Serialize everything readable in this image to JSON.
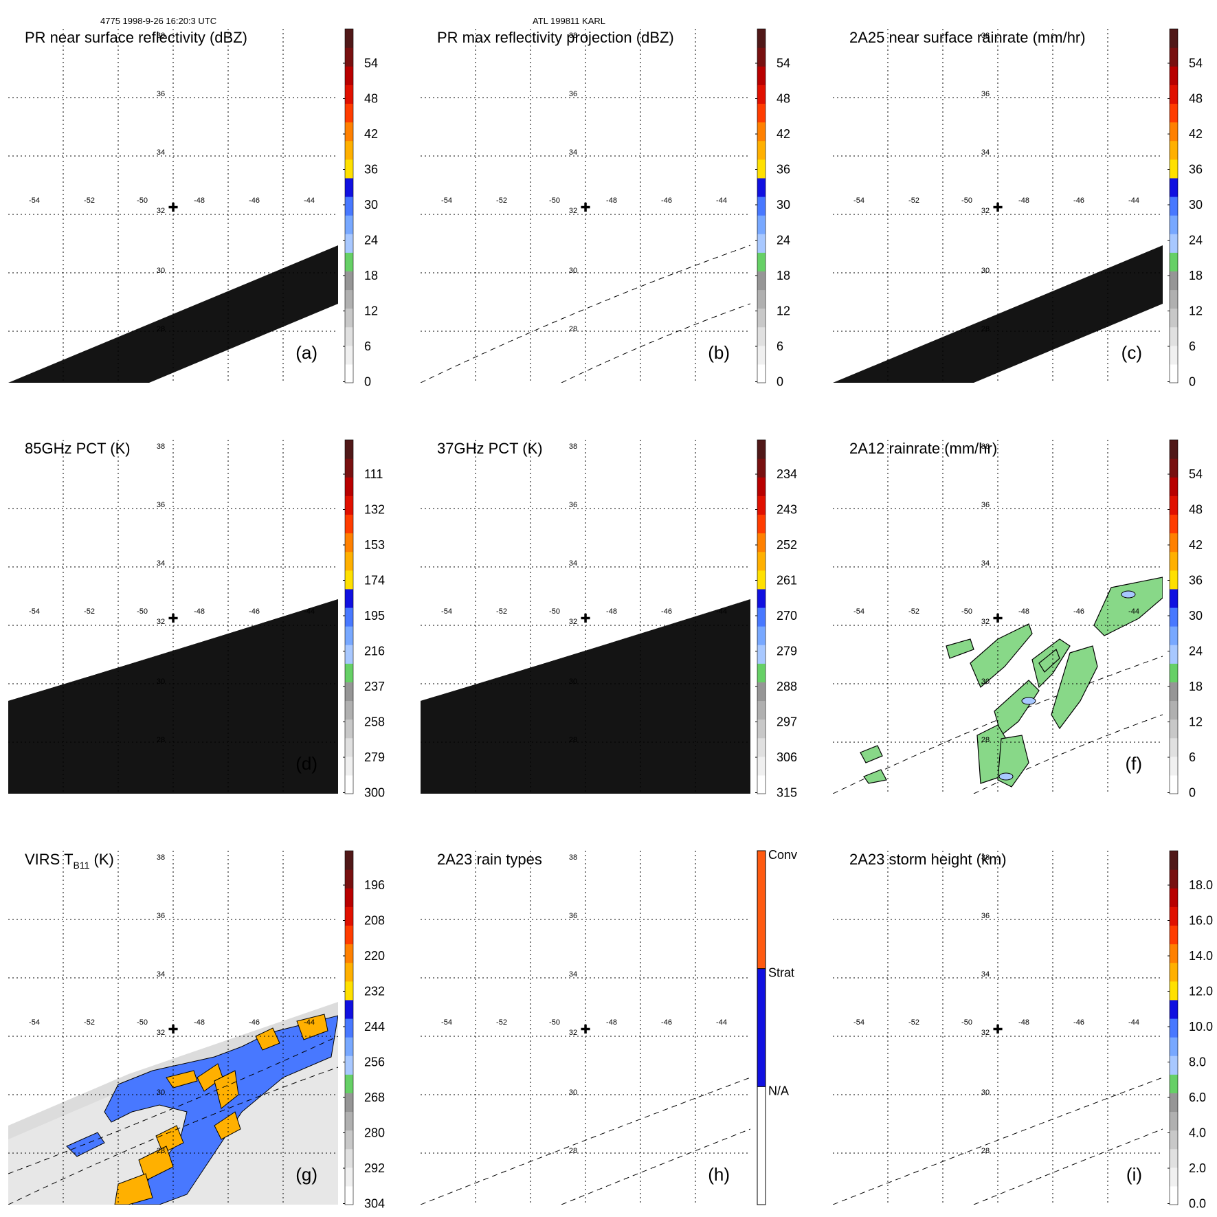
{
  "header": {
    "left": "4775 1998-9-26 16:20:3 UTC",
    "center": "ATL 199811 KARL"
  },
  "map": {
    "lon_labels": [
      "-54",
      "-52",
      "-50",
      "-48",
      "-46",
      "-44"
    ],
    "lat_labels": [
      "38",
      "36",
      "34",
      "32",
      "30",
      "28"
    ],
    "storm_center_symbol": "✚"
  },
  "panels": [
    {
      "id": "a",
      "title": "PR near surface reflectivity (dBZ)",
      "letter": "(a)",
      "colorbar": {
        "ticks": [
          "54",
          "48",
          "42",
          "36",
          "30",
          "24",
          "18",
          "12",
          "6",
          "0"
        ]
      },
      "content": "swath"
    },
    {
      "id": "b",
      "title": "PR max reflectivity projection (dBZ)",
      "letter": "(b)",
      "colorbar": {
        "ticks": [
          "54",
          "48",
          "42",
          "36",
          "30",
          "24",
          "18",
          "12",
          "6",
          "0"
        ]
      },
      "content": "dashed"
    },
    {
      "id": "c",
      "title": "2A25 near surface rainrate (mm/hr)",
      "letter": "(c)",
      "colorbar": {
        "ticks": [
          "54",
          "48",
          "42",
          "36",
          "30",
          "24",
          "18",
          "12",
          "6",
          "0"
        ]
      },
      "content": "swath"
    },
    {
      "id": "d",
      "title": "85GHz PCT (K)",
      "letter": "(d)",
      "colorbar": {
        "ticks": [
          "111",
          "132",
          "153",
          "174",
          "195",
          "216",
          "237",
          "258",
          "279",
          "300"
        ]
      },
      "content": "swath-wide"
    },
    {
      "id": "e",
      "title": "37GHz PCT (K)",
      "letter": "",
      "colorbar": {
        "ticks": [
          "234",
          "243",
          "252",
          "261",
          "270",
          "279",
          "288",
          "297",
          "306",
          "315"
        ]
      },
      "content": "swath-wide"
    },
    {
      "id": "f",
      "title": "2A12 rainrate (mm/hr)",
      "letter": "(f)",
      "colorbar": {
        "ticks": [
          "54",
          "48",
          "42",
          "36",
          "30",
          "24",
          "18",
          "12",
          "6",
          "0"
        ]
      },
      "content": "rain"
    },
    {
      "id": "g",
      "title": "VIRS T",
      "title_sub": "B11",
      "title_tail": " (K)",
      "letter": "(g)",
      "colorbar": {
        "ticks": [
          "196",
          "208",
          "220",
          "232",
          "244",
          "256",
          "268",
          "280",
          "292",
          "304"
        ]
      },
      "content": "virs"
    },
    {
      "id": "h",
      "title": "2A23 rain types",
      "letter": "(h)",
      "colorbar": {
        "type": "categorical",
        "labels": [
          "Conv",
          "Strat",
          "N/A"
        ],
        "colors": [
          "#ff5a10",
          "#1010e0",
          "#ffffff"
        ]
      },
      "content": "dashed-low"
    },
    {
      "id": "i",
      "title": "2A23 storm height (km)",
      "letter": "(i)",
      "colorbar": {
        "ticks": [
          "18.0",
          "16.0",
          "14.0",
          "12.0",
          "10.0",
          "8.0",
          "6.0",
          "4.0",
          "2.0",
          "0.0"
        ]
      },
      "content": "dashed-low"
    }
  ],
  "colors": {
    "scale": [
      "#ffffff",
      "#f0f0f0",
      "#e0e0e0",
      "#c8c8c8",
      "#b0b0b0",
      "#969696",
      "#66d066",
      "#a8c8ff",
      "#78a8ff",
      "#4878ff",
      "#1010e0",
      "#ffe000",
      "#ffb000",
      "#ff8000",
      "#ff3c00",
      "#e01000",
      "#b80000",
      "#781010",
      "#501818"
    ],
    "swath": "#141414",
    "rain_fill": "#88d888",
    "rain_light": "#a8c8ff"
  }
}
